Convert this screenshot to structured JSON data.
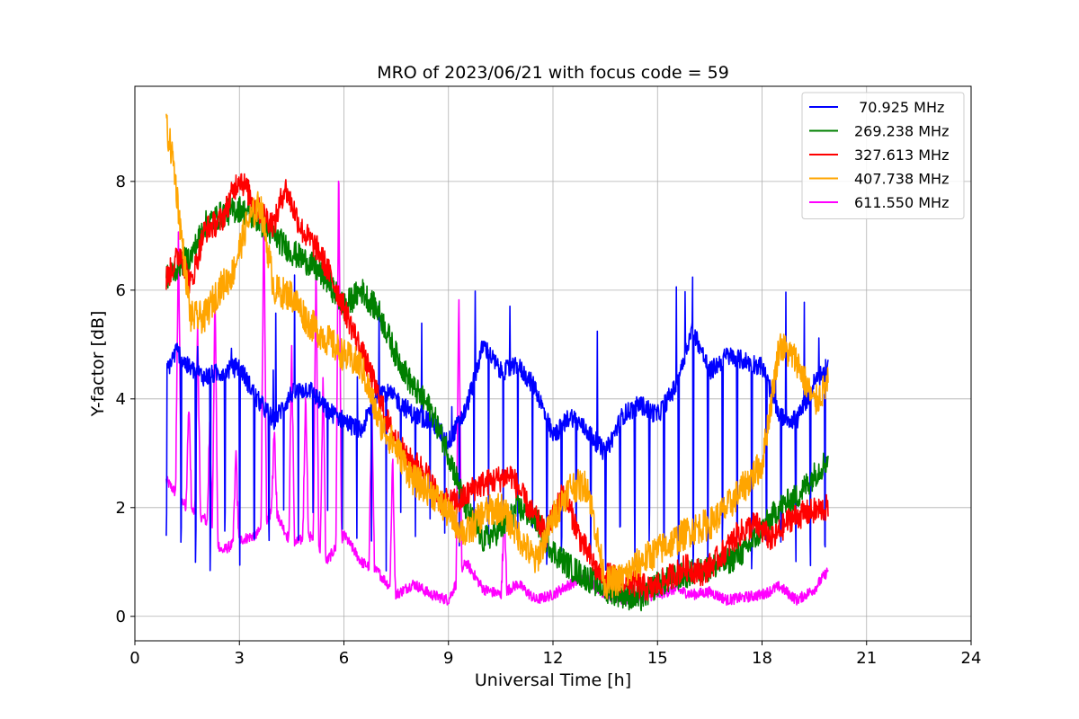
{
  "chart_data": {
    "type": "line",
    "title": "MRO of 2023/06/21 with focus code = 59",
    "xlabel": "Universal Time [h]",
    "ylabel": "Y-factor [dB]",
    "xlim": [
      0,
      24
    ],
    "ylim": [
      -0.45,
      9.75
    ],
    "xticks": [
      "0",
      "3",
      "6",
      "9",
      "12",
      "15",
      "18",
      "21",
      "24"
    ],
    "yticks": [
      "0",
      "2",
      "4",
      "6",
      "8"
    ],
    "grid": true,
    "legend_position": "top-right",
    "series": [
      {
        "name": " 70.925 MHz",
        "color": "#0000ff",
        "x": [
          0.9,
          1.2,
          1.5,
          2.0,
          2.5,
          3.0,
          3.5,
          4.0,
          4.5,
          5.0,
          5.5,
          6.0,
          6.5,
          7.0,
          7.5,
          8.0,
          8.5,
          9.0,
          9.5,
          10.0,
          10.5,
          11.0,
          11.5,
          12.0,
          12.5,
          13.0,
          13.5,
          14.0,
          14.5,
          15.0,
          15.5,
          16.0,
          16.5,
          17.0,
          17.5,
          18.0,
          18.5,
          19.0,
          19.5,
          19.9
        ],
        "y": [
          4.5,
          4.9,
          4.6,
          4.4,
          4.5,
          4.6,
          4.0,
          3.6,
          4.1,
          4.2,
          3.8,
          3.6,
          3.4,
          4.2,
          4.0,
          3.7,
          3.6,
          3.2,
          3.8,
          5.0,
          4.5,
          4.6,
          4.2,
          3.3,
          3.7,
          3.4,
          3.0,
          3.7,
          3.9,
          3.7,
          4.2,
          5.3,
          4.5,
          4.8,
          4.7,
          4.6,
          3.7,
          3.6,
          4.3,
          4.6
        ],
        "dip_period_h": 0.42,
        "dip_level": 1.4
      },
      {
        "name": "269.238 MHz",
        "color": "#008000",
        "x": [
          0.9,
          1.3,
          1.6,
          2.0,
          2.5,
          3.0,
          3.5,
          4.0,
          4.5,
          5.0,
          5.5,
          6.0,
          6.5,
          7.0,
          7.5,
          8.0,
          8.5,
          9.0,
          9.5,
          10.0,
          10.5,
          11.0,
          11.5,
          12.0,
          12.5,
          13.0,
          13.5,
          14.0,
          14.5,
          15.0,
          15.5,
          16.0,
          16.5,
          17.0,
          17.5,
          18.0,
          18.5,
          19.0,
          19.5,
          19.9
        ],
        "y": [
          6.2,
          6.5,
          6.6,
          7.2,
          7.4,
          7.5,
          7.3,
          7.0,
          6.7,
          6.5,
          6.2,
          5.7,
          6.0,
          5.6,
          4.8,
          4.2,
          3.8,
          3.0,
          2.0,
          1.4,
          1.6,
          2.0,
          1.8,
          1.2,
          0.9,
          0.7,
          0.5,
          0.4,
          0.3,
          0.6,
          0.7,
          0.8,
          0.9,
          1.0,
          1.2,
          1.6,
          2.0,
          2.2,
          2.6,
          2.9
        ],
        "noise": 0.25
      },
      {
        "name": "327.613 MHz",
        "color": "#ff0000",
        "x": [
          0.9,
          1.3,
          1.6,
          2.0,
          2.5,
          3.0,
          3.5,
          4.0,
          4.3,
          4.8,
          5.3,
          5.8,
          6.3,
          6.8,
          7.3,
          7.8,
          8.3,
          8.8,
          9.3,
          9.8,
          10.3,
          10.8,
          11.3,
          11.8,
          12.3,
          12.8,
          13.3,
          13.8,
          14.3,
          14.8,
          15.3,
          15.8,
          16.3,
          16.8,
          17.3,
          17.8,
          18.3,
          18.8,
          19.3,
          19.9
        ],
        "y": [
          6.2,
          6.7,
          6.1,
          7.1,
          7.3,
          8.1,
          7.5,
          7.2,
          7.9,
          7.1,
          6.7,
          6.0,
          5.2,
          4.4,
          3.5,
          2.9,
          2.7,
          2.1,
          2.1,
          2.4,
          2.5,
          2.6,
          2.0,
          1.5,
          2.3,
          1.4,
          0.8,
          0.7,
          0.6,
          0.5,
          0.7,
          0.9,
          0.8,
          1.1,
          1.5,
          1.7,
          1.4,
          1.8,
          1.9,
          2.0
        ],
        "noise": 0.25
      },
      {
        "name": "407.738 MHz",
        "color": "#ffa500",
        "x": [
          0.9,
          1.1,
          1.3,
          1.6,
          2.0,
          2.4,
          2.8,
          3.2,
          3.6,
          4.0,
          4.5,
          5.0,
          5.5,
          6.0,
          6.5,
          7.0,
          7.5,
          8.0,
          8.5,
          9.0,
          9.5,
          10.0,
          10.5,
          11.0,
          11.5,
          12.0,
          12.5,
          13.0,
          13.5,
          14.0,
          14.5,
          15.0,
          15.5,
          16.0,
          16.5,
          17.0,
          17.5,
          18.0,
          18.5,
          19.0,
          19.5,
          19.9
        ],
        "y": [
          9.0,
          8.4,
          7.2,
          5.5,
          5.5,
          6.0,
          6.3,
          7.2,
          7.6,
          6.0,
          5.9,
          5.4,
          5.1,
          4.8,
          4.6,
          3.6,
          3.1,
          2.5,
          2.3,
          1.9,
          1.5,
          1.9,
          2.0,
          1.5,
          1.0,
          1.8,
          2.4,
          2.4,
          0.6,
          0.7,
          1.0,
          1.2,
          1.4,
          1.6,
          1.7,
          2.0,
          2.4,
          2.8,
          5.0,
          4.7,
          3.9,
          4.3
        ],
        "noise": 0.3
      },
      {
        "name": "611.550 MHz",
        "color": "#ff00ff",
        "x": [
          0.9,
          1.5,
          2.0,
          2.5,
          3.0,
          3.5,
          4.0,
          4.5,
          5.0,
          5.5,
          6.0,
          6.5,
          7.0,
          7.5,
          8.0,
          8.5,
          9.0,
          9.5,
          10.0,
          10.5,
          11.0,
          11.5,
          12.0,
          12.5,
          13.0,
          13.5,
          14.0,
          14.5,
          15.0,
          15.5,
          16.0,
          16.5,
          17.0,
          17.5,
          18.0,
          18.5,
          19.0,
          19.5,
          19.9
        ],
        "y": [
          2.5,
          2.0,
          1.8,
          1.2,
          1.4,
          1.5,
          2.0,
          1.3,
          1.5,
          1.0,
          1.5,
          1.0,
          0.8,
          0.4,
          0.6,
          0.4,
          0.3,
          1.0,
          0.5,
          0.4,
          0.6,
          0.3,
          0.4,
          0.6,
          0.7,
          0.4,
          0.3,
          0.35,
          0.4,
          0.5,
          0.4,
          0.45,
          0.3,
          0.35,
          0.4,
          0.55,
          0.3,
          0.5,
          0.85
        ],
        "noise": 0.1,
        "spikes": [
          {
            "x": 1.25,
            "y": 7.0
          },
          {
            "x": 1.55,
            "y": 4.0
          },
          {
            "x": 1.8,
            "y": 5.5
          },
          {
            "x": 2.15,
            "y": 3.5
          },
          {
            "x": 2.3,
            "y": 6.0
          },
          {
            "x": 2.9,
            "y": 3.0
          },
          {
            "x": 3.7,
            "y": 7.5
          },
          {
            "x": 4.0,
            "y": 3.5
          },
          {
            "x": 4.5,
            "y": 5.0
          },
          {
            "x": 4.9,
            "y": 4.2
          },
          {
            "x": 5.2,
            "y": 6.5
          },
          {
            "x": 5.4,
            "y": 4.5
          },
          {
            "x": 5.85,
            "y": 8.4
          },
          {
            "x": 6.8,
            "y": 4.0
          },
          {
            "x": 7.4,
            "y": 3.0
          },
          {
            "x": 9.3,
            "y": 6.0
          },
          {
            "x": 10.6,
            "y": 2.0
          }
        ]
      }
    ]
  }
}
